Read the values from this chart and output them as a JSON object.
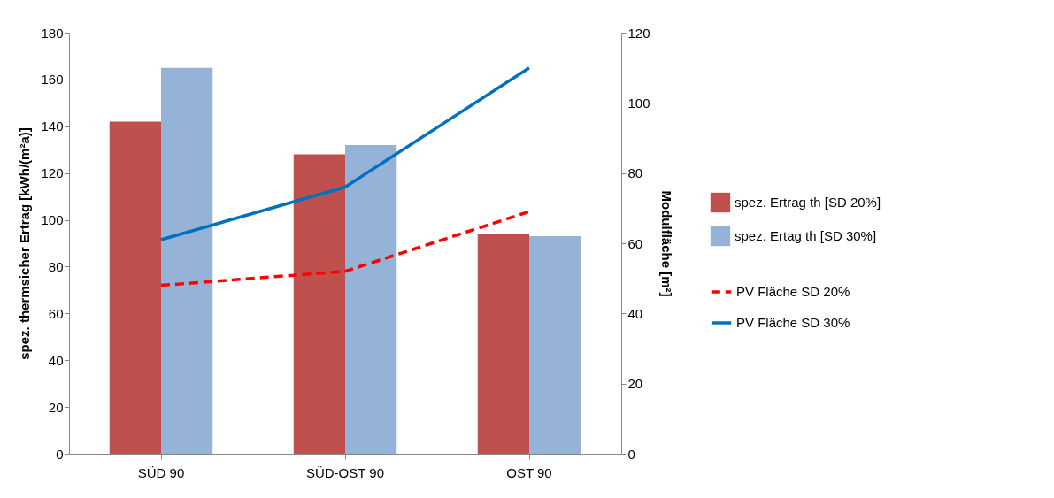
{
  "chart_data": {
    "type": "bar",
    "categories": [
      "SÜD 90",
      "SÜD-OST 90",
      "OST 90"
    ],
    "ylabel": "spez. thermsicher Ertrag [kWh/(m²a)]",
    "y2label": "Modulfläche [m²]",
    "ylim": [
      0,
      180
    ],
    "yticks": [
      0,
      20,
      40,
      60,
      80,
      100,
      120,
      140,
      160,
      180
    ],
    "y2lim": [
      0,
      120
    ],
    "y2ticks": [
      0,
      20,
      40,
      60,
      80,
      100,
      120
    ],
    "legend": "right",
    "grid": false,
    "series": [
      {
        "name": "spez. Ertrag th [SD 20%]",
        "color": "#c0504d",
        "values": [
          142,
          128,
          94
        ]
      },
      {
        "name": "spez. Ertag th [SD 30%]",
        "color": "#95b3d7",
        "values": [
          165,
          132,
          93
        ]
      },
      {
        "name": "PV Fläche SD 20%",
        "type": "line",
        "axis": "y2",
        "line_style": "dashed",
        "color": "#ff0000",
        "values": [
          48,
          52,
          69
        ]
      },
      {
        "name": "PV Fläche SD 30%",
        "type": "line",
        "axis": "y2",
        "line_style": "solid",
        "color": "#0070c0",
        "values": [
          61,
          76,
          110
        ]
      }
    ]
  }
}
